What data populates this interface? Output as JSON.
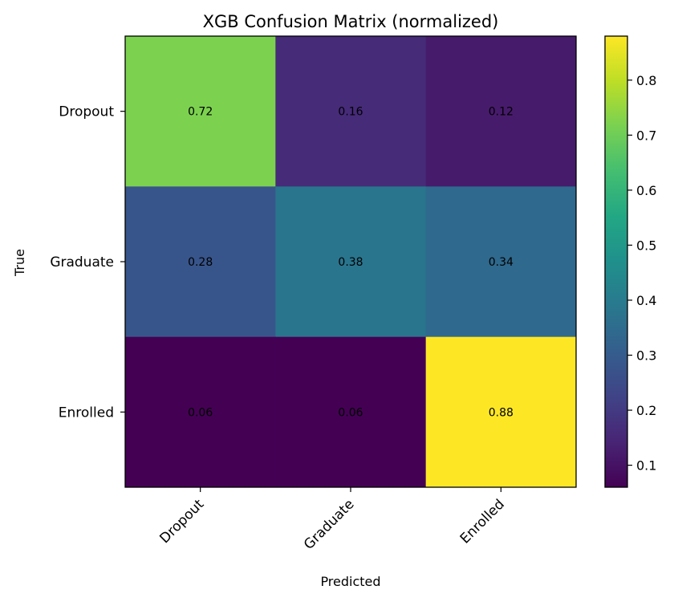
{
  "chart_data": {
    "type": "heatmap",
    "title": "XGB Confusion Matrix (normalized)",
    "xlabel": "Predicted",
    "ylabel": "True",
    "x_categories": [
      "Dropout",
      "Graduate",
      "Enrolled"
    ],
    "y_categories": [
      "Dropout",
      "Graduate",
      "Enrolled"
    ],
    "values": [
      [
        0.72,
        0.16,
        0.12
      ],
      [
        0.28,
        0.38,
        0.34
      ],
      [
        0.06,
        0.06,
        0.88
      ]
    ],
    "value_labels": [
      [
        "0.72",
        "0.16",
        "0.12"
      ],
      [
        "0.28",
        "0.38",
        "0.34"
      ],
      [
        "0.06",
        "0.06",
        "0.88"
      ]
    ],
    "colormap": "viridis",
    "color_range": [
      0.06,
      0.88
    ],
    "colorbar_ticks": [
      "0.1",
      "0.2",
      "0.3",
      "0.4",
      "0.5",
      "0.6",
      "0.7",
      "0.8"
    ],
    "colorbar_tick_values": [
      0.1,
      0.2,
      0.3,
      0.4,
      0.5,
      0.6,
      0.7,
      0.8
    ],
    "colorbar_position": "right",
    "grid": false
  }
}
